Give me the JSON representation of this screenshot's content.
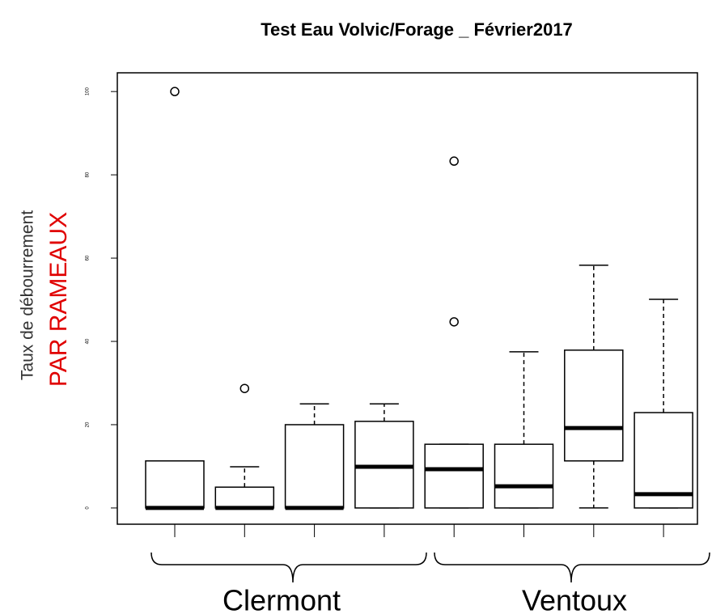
{
  "chart_data": {
    "type": "box",
    "title": "Test Eau Volvic/Forage _ Février2017",
    "ylabel": "Taux de débourrement",
    "ylabel_note": "PAR RAMEAUX",
    "categories": [
      null,
      null,
      null,
      null,
      null,
      null,
      null,
      null
    ],
    "group_labels": [
      "Clermont",
      "Ventoux"
    ],
    "ylim": [
      -3.9,
      104.5
    ],
    "yticks": [
      0,
      20,
      40,
      60,
      80,
      100
    ],
    "boxes": [
      {
        "whisker_low": 0,
        "q1": 0,
        "median": 0,
        "q3": 11.3,
        "whisker_high": 11.3,
        "outliers": [
          100
        ]
      },
      {
        "whisker_low": 0,
        "q1": 0,
        "median": 0,
        "q3": 5,
        "whisker_high": 9.9,
        "outliers": [
          28.7
        ]
      },
      {
        "whisker_low": 0,
        "q1": 0,
        "median": 0,
        "q3": 20,
        "whisker_high": 25,
        "outliers": []
      },
      {
        "whisker_low": 0,
        "q1": 0,
        "median": 9.9,
        "q3": 20.8,
        "whisker_high": 25,
        "outliers": []
      },
      {
        "whisker_low": 0,
        "q1": 0,
        "median": 9.3,
        "q3": 15.3,
        "whisker_high": 15.3,
        "outliers": [
          83.3,
          44.7
        ]
      },
      {
        "whisker_low": 0,
        "q1": 0,
        "median": 5.2,
        "q3": 15.3,
        "whisker_high": 37.5,
        "outliers": []
      },
      {
        "whisker_low": 0,
        "q1": 11.3,
        "median": 19.2,
        "q3": 37.9,
        "whisker_high": 58.3,
        "outliers": []
      },
      {
        "whisker_low": 0,
        "q1": 0,
        "median": 3.3,
        "q3": 22.9,
        "whisker_high": 50.1,
        "outliers": []
      }
    ]
  }
}
